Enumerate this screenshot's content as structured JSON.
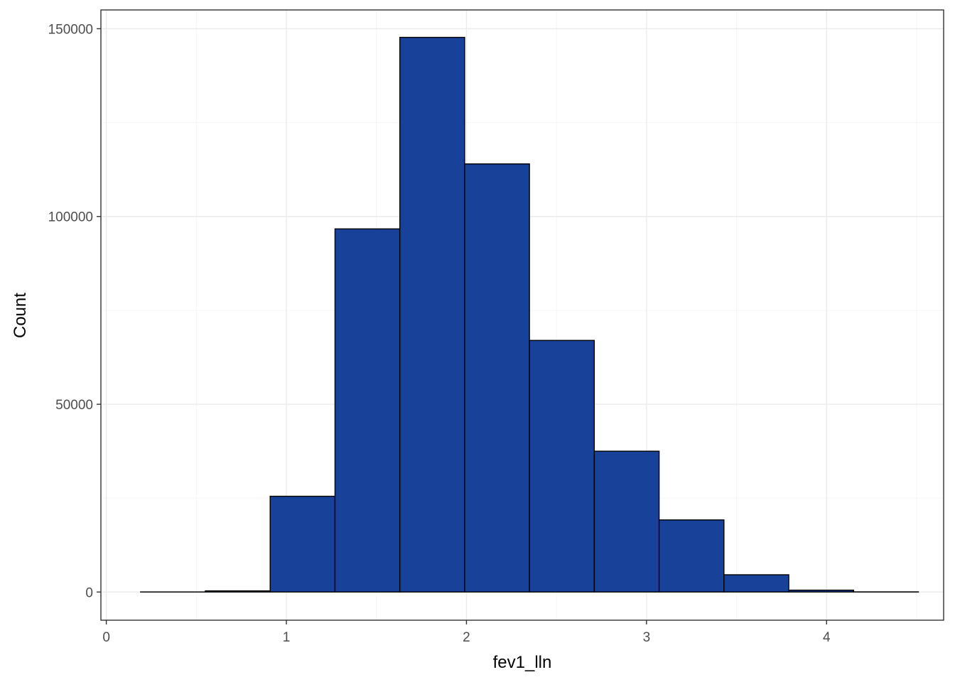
{
  "chart_data": {
    "type": "bar",
    "subtype": "histogram",
    "xlabel": "fev1_lln",
    "ylabel": "Count",
    "xlim": [
      -0.03,
      4.65
    ],
    "ylim": [
      -7500,
      155000
    ],
    "x_ticks": [
      {
        "value": 0,
        "label": "0"
      },
      {
        "value": 1,
        "label": "1"
      },
      {
        "value": 2,
        "label": "2"
      },
      {
        "value": 3,
        "label": "3"
      },
      {
        "value": 4,
        "label": "4"
      }
    ],
    "y_ticks": [
      {
        "value": 0,
        "label": "0"
      },
      {
        "value": 50000,
        "label": "50000"
      },
      {
        "value": 100000,
        "label": "100000"
      },
      {
        "value": 150000,
        "label": "150000"
      }
    ],
    "x_minor_breaks": [
      0.5,
      1.5,
      2.5,
      3.5,
      4.5
    ],
    "y_minor_breaks": [
      25000,
      75000,
      125000
    ],
    "bins": [
      {
        "x_start": 0.19,
        "x_end": 0.55,
        "count": 20
      },
      {
        "x_start": 0.55,
        "x_end": 0.91,
        "count": 300
      },
      {
        "x_start": 0.91,
        "x_end": 1.27,
        "count": 25500
      },
      {
        "x_start": 1.27,
        "x_end": 1.63,
        "count": 96700
      },
      {
        "x_start": 1.63,
        "x_end": 1.99,
        "count": 147700
      },
      {
        "x_start": 1.99,
        "x_end": 2.35,
        "count": 114000
      },
      {
        "x_start": 2.35,
        "x_end": 2.71,
        "count": 67000
      },
      {
        "x_start": 2.71,
        "x_end": 3.07,
        "count": 37500
      },
      {
        "x_start": 3.07,
        "x_end": 3.43,
        "count": 19200
      },
      {
        "x_start": 3.43,
        "x_end": 3.79,
        "count": 4600
      },
      {
        "x_start": 3.79,
        "x_end": 4.15,
        "count": 500
      },
      {
        "x_start": 4.15,
        "x_end": 4.51,
        "count": 40
      }
    ],
    "colors": {
      "bar_fill": "#18419a",
      "bar_stroke": "#000000",
      "grid_major": "#ebebeb",
      "grid_minor": "#f4f4f4",
      "panel_border": "#333333",
      "background": "#ffffff"
    },
    "grid": true,
    "legend": "none",
    "theme": "bw"
  }
}
